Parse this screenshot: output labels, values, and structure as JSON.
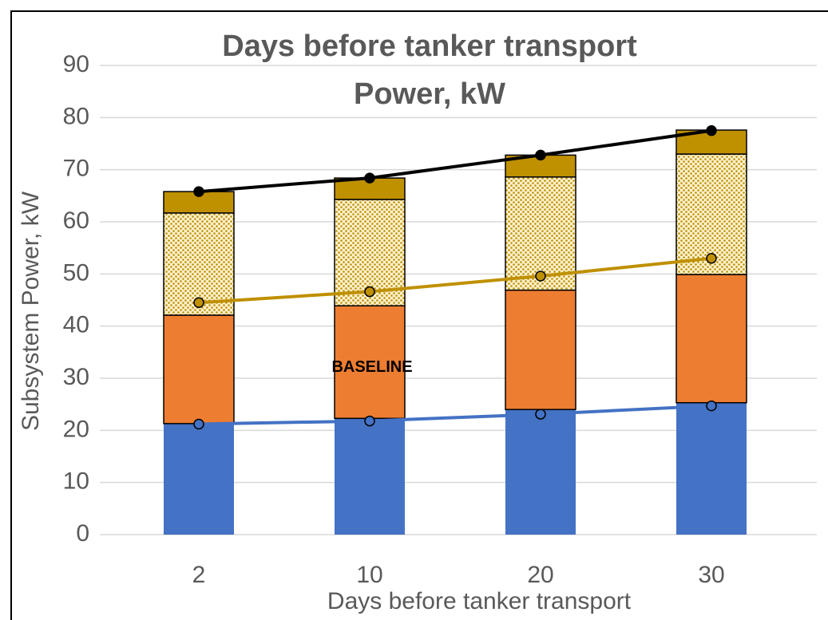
{
  "chart_data": {
    "type": "bar",
    "title": "Days before tanker transport",
    "subtitle": "Power, kW",
    "x_label": "Days before tanker transport",
    "y_label": "Subsystem Power, kW",
    "annotation": "BASELINE",
    "categories": [
      "2",
      "10",
      "20",
      "30"
    ],
    "stacked": true,
    "grid": true,
    "ylim": [
      0,
      90
    ],
    "yticks": [
      0,
      10,
      20,
      30,
      40,
      50,
      60,
      70,
      80,
      90
    ],
    "series": [
      {
        "color": "#4472c4",
        "values": [
          21.3,
          22.3,
          24.0,
          25.3
        ]
      },
      {
        "color": "#ed7d31",
        "values": [
          20.8,
          21.6,
          22.9,
          24.6
        ]
      },
      {
        "color": "#e8c560",
        "pattern": "dots",
        "values": [
          19.6,
          20.4,
          21.7,
          23.1
        ]
      },
      {
        "color": "#bf9000",
        "values": [
          4.1,
          4.1,
          4.2,
          4.6
        ]
      }
    ],
    "lines": [
      {
        "color": "#000000",
        "marker_fill": "#000000",
        "values": [
          65.8,
          68.4,
          72.8,
          77.5
        ]
      },
      {
        "color": "#bf9000",
        "marker_fill": "#bf9000",
        "values": [
          44.5,
          46.6,
          49.6,
          53.0
        ]
      },
      {
        "color": "#4472c4",
        "marker_fill": "#4472c4",
        "values": [
          21.2,
          21.8,
          23.1,
          24.7
        ]
      }
    ]
  }
}
